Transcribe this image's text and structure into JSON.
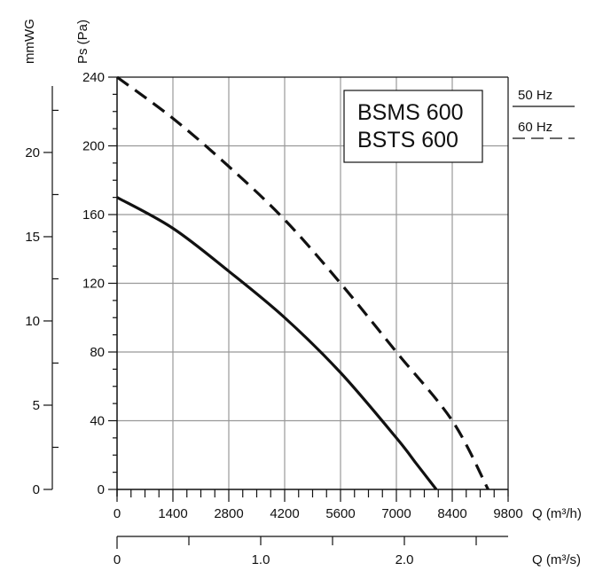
{
  "chart_data": {
    "type": "line",
    "title": "",
    "model_box": [
      "BSMS 600",
      "BSTS 600"
    ],
    "xlabel": "Q (m³/h)",
    "x2label": "Q (m³/s)",
    "ylabel": "Ps (Pa)",
    "y2label": "mmWG",
    "xlim": [
      0,
      9800
    ],
    "ylim": [
      0,
      240
    ],
    "x2lim": [
      0,
      2.7222
    ],
    "y2lim": [
      0,
      24.47
    ],
    "grid": true,
    "x_ticks": [
      "0",
      "1400",
      "2800",
      "4200",
      "5600",
      "7000",
      "8400",
      "9800"
    ],
    "x_tick_values": [
      0,
      1400,
      2800,
      4200,
      5600,
      7000,
      8400,
      9800
    ],
    "y_ticks": [
      "0",
      "40",
      "80",
      "120",
      "160",
      "200",
      "240"
    ],
    "y_tick_values": [
      0,
      40,
      80,
      120,
      160,
      200,
      240
    ],
    "x2_ticks": [
      "0",
      "1.0",
      "2.0"
    ],
    "x2_tick_values": [
      0,
      1.0,
      2.0
    ],
    "x2_minor": [
      0.5,
      1.5,
      2.5
    ],
    "y2_ticks": [
      "0",
      "5",
      "10",
      "15",
      "20"
    ],
    "y2_tick_values": [
      0,
      5,
      10,
      15,
      20
    ],
    "legend": {
      "placement": "top-right",
      "entries": [
        {
          "label": "50 Hz",
          "style": "solid"
        },
        {
          "label": "60 Hz",
          "style": "dashed"
        }
      ]
    },
    "series": [
      {
        "name": "50 Hz",
        "style": "solid",
        "x": [
          0,
          1400,
          2800,
          4200,
          5600,
          7000,
          7500,
          8000
        ],
        "y": [
          170,
          152,
          127,
          100,
          68,
          30,
          15,
          0
        ]
      },
      {
        "name": "60 Hz",
        "style": "dashed",
        "x": [
          0,
          1400,
          2800,
          4200,
          5600,
          7000,
          8400,
          9300
        ],
        "y": [
          240,
          216,
          188,
          157,
          120,
          80,
          40,
          0
        ]
      }
    ]
  }
}
